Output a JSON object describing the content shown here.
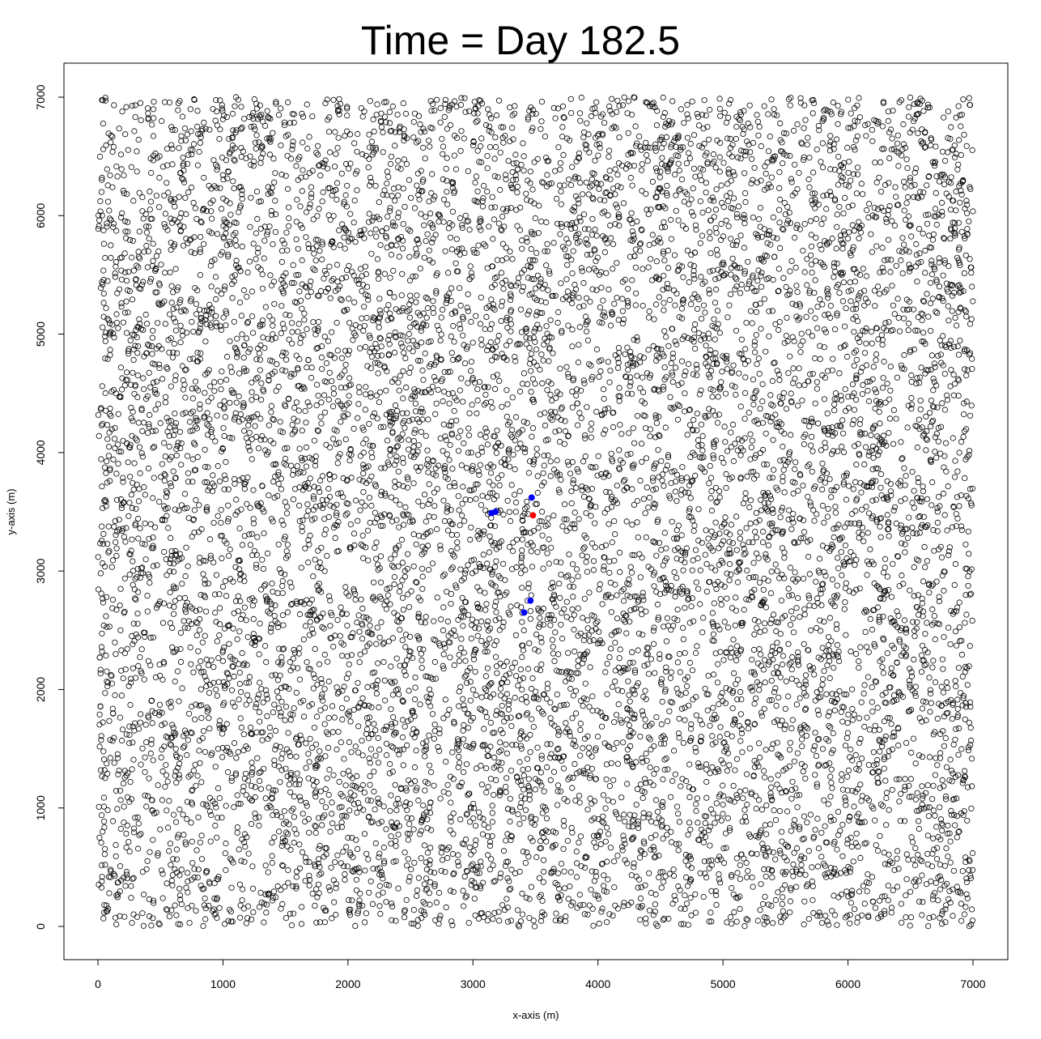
{
  "chart_data": {
    "type": "scatter",
    "title": "Time = Day 182.5",
    "xlabel": "x-axis (m)",
    "ylabel": "y-axis (m)",
    "xlim": [
      0,
      7000
    ],
    "ylim": [
      0,
      7000
    ],
    "x_ticks": [
      "0",
      "1000",
      "2000",
      "3000",
      "4000",
      "5000",
      "6000",
      "7000"
    ],
    "y_ticks": [
      "0",
      "1000",
      "2000",
      "3000",
      "4000",
      "5000",
      "6000",
      "7000"
    ],
    "grid": false,
    "legend": "none",
    "series": [
      {
        "marker": "open-circle",
        "color": "#000000",
        "count_approx": 10000,
        "distribution": "uniform-random over [0,7000] x [0,7000]"
      },
      {
        "marker": "filled-circle",
        "color": "#0000ff",
        "points": [
          {
            "x": 3470,
            "y": 3620
          },
          {
            "x": 3150,
            "y": 3490
          },
          {
            "x": 3180,
            "y": 3500
          },
          {
            "x": 3410,
            "y": 2650
          },
          {
            "x": 3460,
            "y": 2750
          }
        ]
      },
      {
        "marker": "filled-circle",
        "color": "#ff0000",
        "points": [
          {
            "x": 3480,
            "y": 3470
          }
        ]
      }
    ]
  }
}
